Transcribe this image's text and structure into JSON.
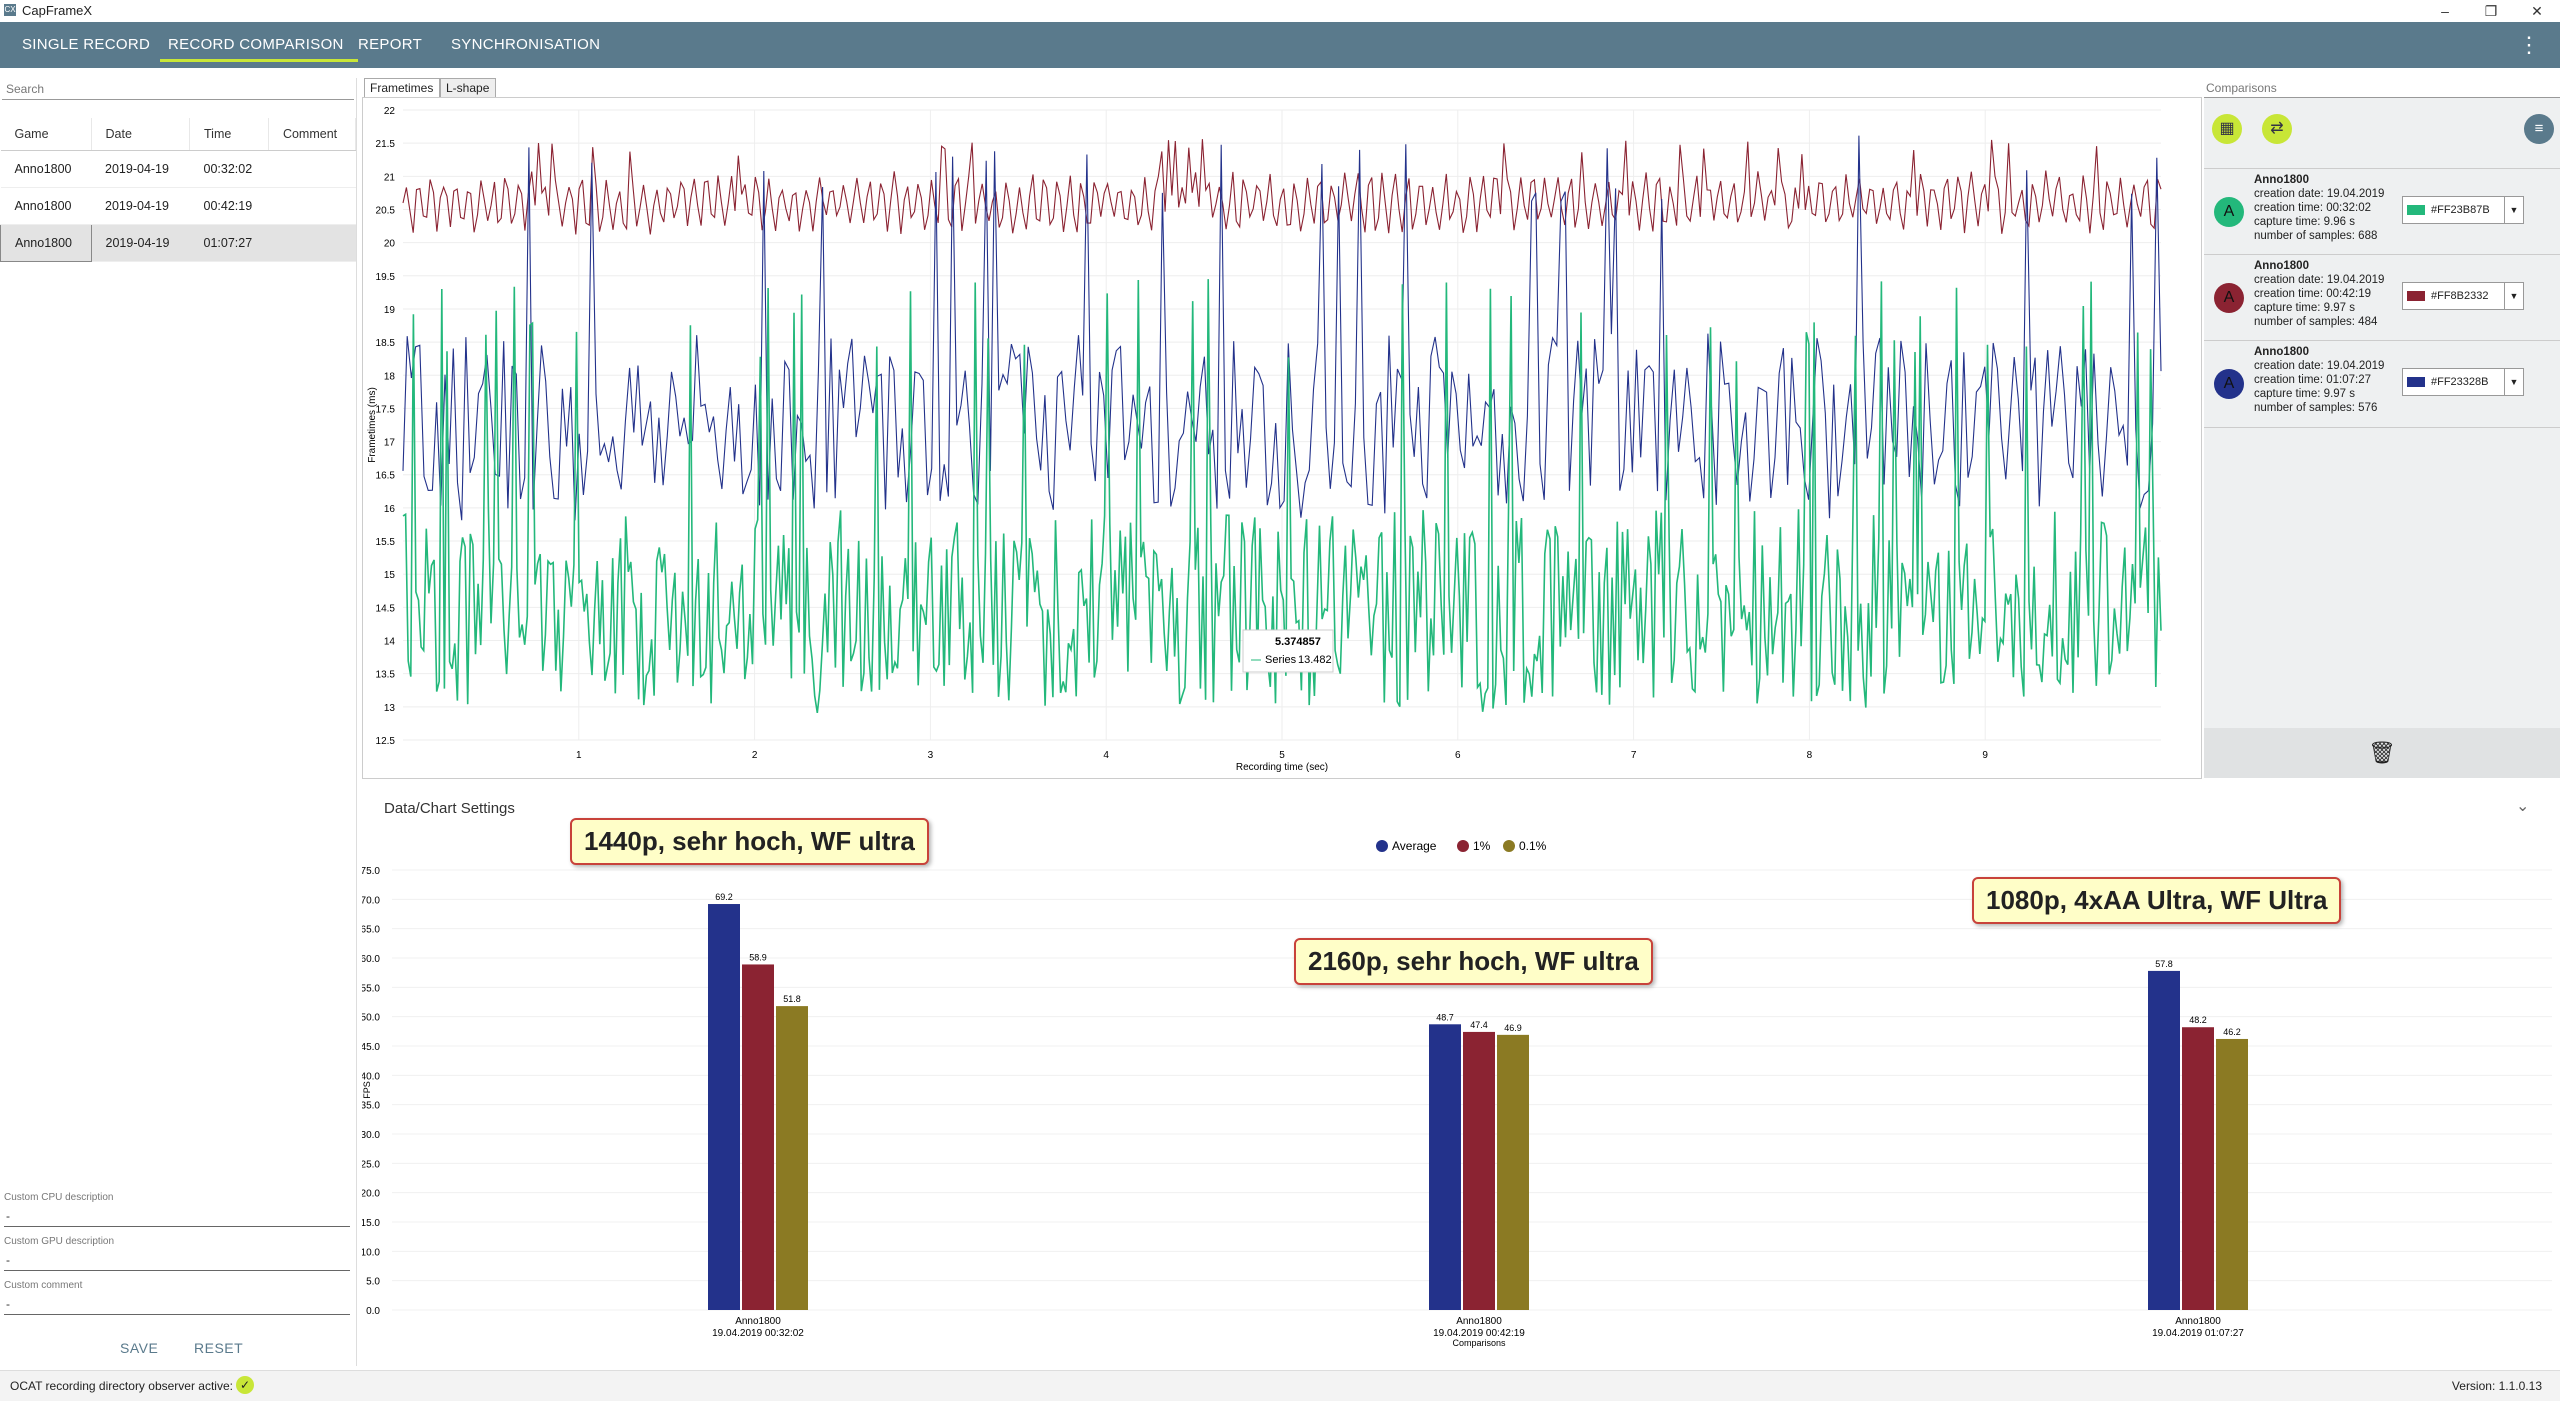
{
  "app": {
    "title": "CapFrameX",
    "version": "Version: 1.1.0.13"
  },
  "menu": {
    "items": [
      "SINGLE RECORD",
      "RECORD COMPARISON",
      "REPORT",
      "SYNCHRONISATION"
    ],
    "active": 1
  },
  "left": {
    "search_placeholder": "Search",
    "columns": [
      "Game",
      "Date",
      "Time",
      "Comment"
    ],
    "rows": [
      {
        "game": "Anno1800",
        "date": "2019-04-19",
        "time": "00:32:02",
        "comment": ""
      },
      {
        "game": "Anno1800",
        "date": "2019-04-19",
        "time": "00:42:19",
        "comment": ""
      },
      {
        "game": "Anno1800",
        "date": "2019-04-19",
        "time": "01:07:27",
        "comment": ""
      }
    ],
    "custom_cpu_label": "Custom CPU description",
    "custom_cpu_value": "-",
    "custom_gpu_label": "Custom GPU description",
    "custom_gpu_value": "-",
    "custom_comment_label": "Custom comment",
    "custom_comment_value": "-",
    "save_label": "SAVE",
    "reset_label": "RESET"
  },
  "tabs": {
    "frametimes": "Frametimes",
    "lshape": "L-shape"
  },
  "comparisons": {
    "header": "Comparisons",
    "items": [
      {
        "avatar": "A",
        "title": "Anno1800",
        "creation_date": "creation date: 19.04.2019",
        "creation_time": "creation time: 00:32:02",
        "capture_time": "capture time: 9.96 s",
        "samples": "number of samples: 688",
        "color": "#23B87B",
        "color_label": "#FF23B87B"
      },
      {
        "avatar": "A",
        "title": "Anno1800",
        "creation_date": "creation date: 19.04.2019",
        "creation_time": "creation time: 00:42:19",
        "capture_time": "capture time: 9.97 s",
        "samples": "number of samples: 484",
        "color": "#8B2332",
        "color_label": "#FF8B2332"
      },
      {
        "avatar": "A",
        "title": "Anno1800",
        "creation_date": "creation date: 19.04.2019",
        "creation_time": "creation time: 01:07:27",
        "capture_time": "capture time: 9.97 s",
        "samples": "number of samples: 576",
        "color": "#23328B",
        "color_label": "#FF23328B"
      }
    ]
  },
  "data_chart_settings": "Data/Chart Settings",
  "annotations": [
    "1440p, sehr hoch, WF ultra",
    "2160p, sehr hoch, WF ultra",
    "1080p, 4xAA Ultra, WF Ultra"
  ],
  "status": {
    "text": "OCAT recording directory observer active:"
  },
  "chart_data": [
    {
      "type": "line",
      "xlabel": "Recording time (sec)",
      "ylabel": "Frametimes (ms)",
      "xlim": [
        0,
        10
      ],
      "ylim": [
        12.5,
        22
      ],
      "yticks": [
        12.5,
        13,
        13.5,
        14,
        14.5,
        15,
        15.5,
        16,
        16.5,
        17,
        17.5,
        18,
        18.5,
        19,
        19.5,
        20,
        20.5,
        21,
        21.5,
        22
      ],
      "xticks": [
        1,
        2,
        3,
        4,
        5,
        6,
        7,
        8,
        9
      ],
      "grid": true,
      "tooltip": {
        "x": "5.374857",
        "label": "Series",
        "y": "13.482"
      },
      "series": [
        {
          "color": "#8B2332",
          "approx_mean": 20.6,
          "approx_range": [
            20.0,
            21.6
          ]
        },
        {
          "color": "#23328B",
          "approx_mean": 17.3,
          "approx_range": [
            15.8,
            21.7
          ]
        },
        {
          "color": "#23B87B",
          "approx_mean": 14.5,
          "approx_range": [
            12.9,
            19.5
          ]
        }
      ]
    },
    {
      "type": "bar",
      "ylabel": "FPS",
      "ylim": [
        0,
        75
      ],
      "yticks": [
        0.0,
        5.0,
        10.0,
        15.0,
        20.0,
        25.0,
        30.0,
        35.0,
        40.0,
        45.0,
        50.0,
        55.0,
        60.0,
        65.0,
        70.0,
        75.0
      ],
      "xlabel": "Comparisons",
      "categories": [
        {
          "name": "Anno1800",
          "sub": "19.04.2019 00:32:02"
        },
        {
          "name": "Anno1800",
          "sub": "19.04.2019 00:42:19"
        },
        {
          "name": "Anno1800",
          "sub": "19.04.2019 01:07:27"
        }
      ],
      "series": [
        {
          "name": "Average",
          "color": "#23328B",
          "values": [
            69.2,
            48.7,
            57.8
          ]
        },
        {
          "name": "1%",
          "color": "#8B2332",
          "values": [
            58.9,
            47.4,
            48.2
          ]
        },
        {
          "name": "0.1%",
          "color": "#8B7A23",
          "values": [
            51.8,
            46.9,
            46.2
          ]
        }
      ]
    }
  ]
}
